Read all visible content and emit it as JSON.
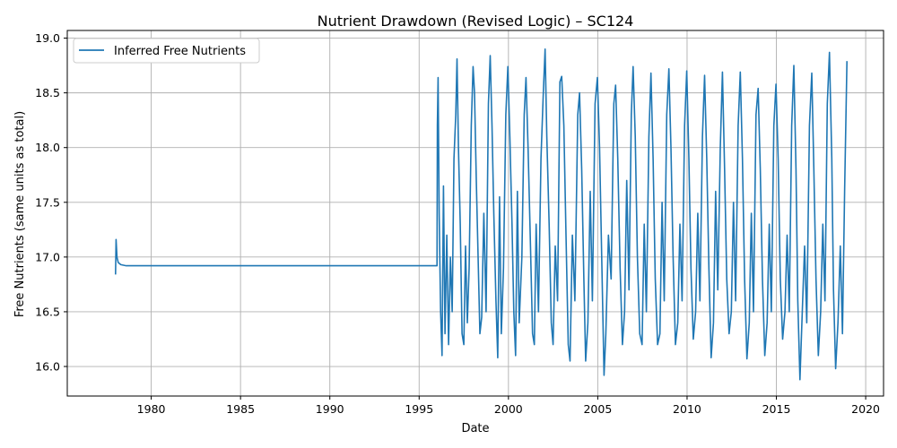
{
  "chart_data": {
    "type": "line",
    "title": "Nutrient Drawdown (Revised Logic) – SC124",
    "xlabel": "Date",
    "ylabel": "Free Nutrients (same units as total)",
    "xlim": [
      1975.3,
      1980.0
    ],
    "xlim_years": [
      1975.3,
      2021.0
    ],
    "ylim": [
      15.73,
      19.07
    ],
    "x_ticks": [
      "1980",
      "1985",
      "1990",
      "1995",
      "2000",
      "2005",
      "2010",
      "2015",
      "2020"
    ],
    "y_ticks": [
      "16.0",
      "16.5",
      "17.0",
      "17.5",
      "18.0",
      "18.5",
      "19.0"
    ],
    "grid": true,
    "legend_position": "top-left",
    "series": [
      {
        "name": "Inferred Free Nutrients",
        "color": "#1f77b4",
        "points": [
          [
            1978.0,
            16.84
          ],
          [
            1978.03,
            17.16
          ],
          [
            1978.08,
            17.0
          ],
          [
            1978.15,
            16.95
          ],
          [
            1978.3,
            16.93
          ],
          [
            1978.6,
            16.92
          ],
          [
            1980.0,
            16.92
          ],
          [
            1990.0,
            16.92
          ],
          [
            1996.0,
            16.92
          ],
          [
            1996.02,
            18.2
          ],
          [
            1996.06,
            18.64
          ],
          [
            1996.12,
            17.4
          ],
          [
            1996.2,
            16.5
          ],
          [
            1996.28,
            16.1
          ],
          [
            1996.36,
            17.65
          ],
          [
            1996.45,
            16.3
          ],
          [
            1996.55,
            17.2
          ],
          [
            1996.65,
            16.2
          ],
          [
            1996.75,
            17.0
          ],
          [
            1996.85,
            16.5
          ],
          [
            1996.95,
            17.9
          ],
          [
            1997.05,
            18.3
          ],
          [
            1997.12,
            18.81
          ],
          [
            1997.2,
            18.0
          ],
          [
            1997.3,
            17.3
          ],
          [
            1997.4,
            16.3
          ],
          [
            1997.5,
            16.2
          ],
          [
            1997.6,
            17.1
          ],
          [
            1997.7,
            16.4
          ],
          [
            1997.8,
            16.9
          ],
          [
            1997.92,
            18.2
          ],
          [
            1998.02,
            18.74
          ],
          [
            1998.1,
            18.5
          ],
          [
            1998.2,
            17.7
          ],
          [
            1998.3,
            17.0
          ],
          [
            1998.4,
            16.3
          ],
          [
            1998.5,
            16.45
          ],
          [
            1998.62,
            17.4
          ],
          [
            1998.75,
            16.5
          ],
          [
            1998.88,
            18.4
          ],
          [
            1998.98,
            18.84
          ],
          [
            1999.08,
            18.2
          ],
          [
            1999.18,
            17.4
          ],
          [
            1999.3,
            16.6
          ],
          [
            1999.4,
            16.08
          ],
          [
            1999.5,
            17.55
          ],
          [
            1999.6,
            16.3
          ],
          [
            1999.72,
            16.9
          ],
          [
            1999.85,
            18.3
          ],
          [
            1999.97,
            18.74
          ],
          [
            2000.08,
            18.1
          ],
          [
            2000.2,
            17.3
          ],
          [
            2000.3,
            16.5
          ],
          [
            2000.4,
            16.1
          ],
          [
            2000.5,
            17.6
          ],
          [
            2000.6,
            16.4
          ],
          [
            2000.75,
            17.0
          ],
          [
            2000.88,
            18.3
          ],
          [
            2000.98,
            18.64
          ],
          [
            2001.1,
            18.0
          ],
          [
            2001.22,
            17.2
          ],
          [
            2001.35,
            16.3
          ],
          [
            2001.45,
            16.2
          ],
          [
            2001.55,
            17.3
          ],
          [
            2001.68,
            16.5
          ],
          [
            2001.82,
            17.9
          ],
          [
            2001.95,
            18.5
          ],
          [
            2002.05,
            18.9
          ],
          [
            2002.15,
            18.1
          ],
          [
            2002.28,
            17.3
          ],
          [
            2002.4,
            16.4
          ],
          [
            2002.5,
            16.2
          ],
          [
            2002.62,
            17.1
          ],
          [
            2002.75,
            16.6
          ],
          [
            2002.88,
            18.6
          ],
          [
            2002.98,
            18.65
          ],
          [
            2003.1,
            18.2
          ],
          [
            2003.22,
            17.2
          ],
          [
            2003.35,
            16.2
          ],
          [
            2003.45,
            16.05
          ],
          [
            2003.58,
            17.2
          ],
          [
            2003.72,
            16.6
          ],
          [
            2003.88,
            18.3
          ],
          [
            2003.98,
            18.5
          ],
          [
            2004.1,
            17.8
          ],
          [
            2004.22,
            16.8
          ],
          [
            2004.32,
            16.05
          ],
          [
            2004.45,
            16.4
          ],
          [
            2004.58,
            17.6
          ],
          [
            2004.7,
            16.6
          ],
          [
            2004.85,
            18.4
          ],
          [
            2004.98,
            18.64
          ],
          [
            2005.1,
            18.0
          ],
          [
            2005.22,
            17.0
          ],
          [
            2005.35,
            15.92
          ],
          [
            2005.45,
            16.3
          ],
          [
            2005.6,
            17.2
          ],
          [
            2005.75,
            16.8
          ],
          [
            2005.9,
            18.4
          ],
          [
            2006.0,
            18.57
          ],
          [
            2006.12,
            17.9
          ],
          [
            2006.25,
            16.9
          ],
          [
            2006.38,
            16.2
          ],
          [
            2006.5,
            16.5
          ],
          [
            2006.62,
            17.7
          ],
          [
            2006.75,
            16.7
          ],
          [
            2006.88,
            18.3
          ],
          [
            2006.98,
            18.74
          ],
          [
            2007.1,
            18.1
          ],
          [
            2007.22,
            17.0
          ],
          [
            2007.35,
            16.3
          ],
          [
            2007.48,
            16.2
          ],
          [
            2007.6,
            17.3
          ],
          [
            2007.72,
            16.5
          ],
          [
            2007.86,
            18.1
          ],
          [
            2007.98,
            18.68
          ],
          [
            2008.1,
            17.9
          ],
          [
            2008.22,
            16.8
          ],
          [
            2008.35,
            16.2
          ],
          [
            2008.48,
            16.3
          ],
          [
            2008.6,
            17.5
          ],
          [
            2008.72,
            16.6
          ],
          [
            2008.86,
            18.3
          ],
          [
            2008.98,
            18.72
          ],
          [
            2009.1,
            18.0
          ],
          [
            2009.22,
            17.0
          ],
          [
            2009.35,
            16.2
          ],
          [
            2009.48,
            16.4
          ],
          [
            2009.6,
            17.3
          ],
          [
            2009.72,
            16.6
          ],
          [
            2009.86,
            18.2
          ],
          [
            2009.98,
            18.7
          ],
          [
            2010.1,
            17.9
          ],
          [
            2010.22,
            16.9
          ],
          [
            2010.35,
            16.25
          ],
          [
            2010.48,
            16.5
          ],
          [
            2010.6,
            17.4
          ],
          [
            2010.72,
            16.6
          ],
          [
            2010.86,
            18.1
          ],
          [
            2010.98,
            18.66
          ],
          [
            2011.1,
            17.9
          ],
          [
            2011.22,
            16.9
          ],
          [
            2011.35,
            16.08
          ],
          [
            2011.48,
            16.4
          ],
          [
            2011.6,
            17.6
          ],
          [
            2011.72,
            16.7
          ],
          [
            2011.86,
            18.0
          ],
          [
            2011.98,
            18.69
          ],
          [
            2012.1,
            17.8
          ],
          [
            2012.22,
            16.8
          ],
          [
            2012.35,
            16.3
          ],
          [
            2012.48,
            16.5
          ],
          [
            2012.6,
            17.5
          ],
          [
            2012.72,
            16.6
          ],
          [
            2012.86,
            18.2
          ],
          [
            2012.98,
            18.69
          ],
          [
            2013.1,
            17.9
          ],
          [
            2013.22,
            16.8
          ],
          [
            2013.35,
            16.07
          ],
          [
            2013.48,
            16.4
          ],
          [
            2013.6,
            17.4
          ],
          [
            2013.72,
            16.5
          ],
          [
            2013.86,
            18.3
          ],
          [
            2013.98,
            18.54
          ],
          [
            2014.1,
            17.8
          ],
          [
            2014.22,
            16.8
          ],
          [
            2014.35,
            16.1
          ],
          [
            2014.48,
            16.4
          ],
          [
            2014.6,
            17.3
          ],
          [
            2014.72,
            16.5
          ],
          [
            2014.86,
            18.2
          ],
          [
            2014.98,
            18.58
          ],
          [
            2015.1,
            17.9
          ],
          [
            2015.22,
            16.8
          ],
          [
            2015.35,
            16.25
          ],
          [
            2015.48,
            16.5
          ],
          [
            2015.6,
            17.2
          ],
          [
            2015.72,
            16.5
          ],
          [
            2015.86,
            18.2
          ],
          [
            2015.98,
            18.75
          ],
          [
            2016.1,
            17.8
          ],
          [
            2016.2,
            16.6
          ],
          [
            2016.32,
            15.88
          ],
          [
            2016.45,
            16.5
          ],
          [
            2016.58,
            17.1
          ],
          [
            2016.7,
            16.4
          ],
          [
            2016.85,
            18.2
          ],
          [
            2016.98,
            18.68
          ],
          [
            2017.1,
            17.8
          ],
          [
            2017.22,
            16.8
          ],
          [
            2017.35,
            16.1
          ],
          [
            2017.48,
            16.5
          ],
          [
            2017.6,
            17.3
          ],
          [
            2017.72,
            16.6
          ],
          [
            2017.85,
            18.4
          ],
          [
            2017.97,
            18.87
          ],
          [
            2018.1,
            17.9
          ],
          [
            2018.2,
            16.7
          ],
          [
            2018.32,
            15.98
          ],
          [
            2018.45,
            16.4
          ],
          [
            2018.58,
            17.1
          ],
          [
            2018.7,
            16.3
          ],
          [
            2018.82,
            17.6
          ],
          [
            2018.95,
            18.79
          ]
        ]
      }
    ]
  }
}
